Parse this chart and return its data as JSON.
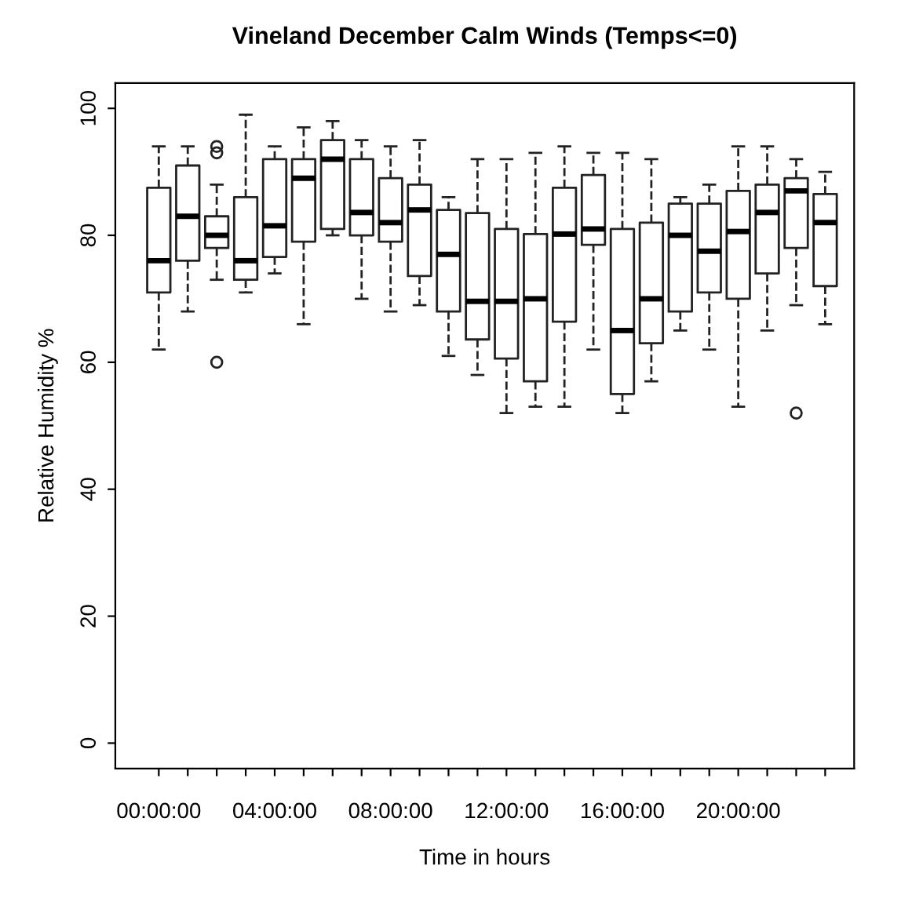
{
  "chart_data": {
    "type": "box",
    "title": "Vineland December Calm Winds (Temps<=0)",
    "xlabel": "Time in hours",
    "ylabel": "Relative Humidity %",
    "categories": [
      "00:00:00",
      null,
      null,
      null,
      "04:00:00",
      null,
      null,
      null,
      "08:00:00",
      null,
      null,
      null,
      "12:00:00",
      null,
      null,
      null,
      "16:00:00",
      null,
      null,
      null,
      "20:00:00",
      null,
      null,
      null
    ],
    "ylim": [
      -4,
      104
    ],
    "yticks": [
      0,
      20,
      40,
      60,
      80,
      100
    ],
    "grid": false,
    "boxes": [
      {
        "low": 62,
        "q1": 71,
        "median": 76,
        "q3": 87.5,
        "high": 94
      },
      {
        "low": 68,
        "q1": 76,
        "median": 83,
        "q3": 91,
        "high": 94
      },
      {
        "low": 73,
        "q1": 78,
        "median": 80,
        "q3": 83,
        "high": 88,
        "outliers": [
          94,
          93,
          60
        ]
      },
      {
        "low": 71,
        "q1": 73,
        "median": 76,
        "q3": 86,
        "high": 99
      },
      {
        "low": 74,
        "q1": 76.6,
        "median": 81.5,
        "q3": 92,
        "high": 94
      },
      {
        "low": 66,
        "q1": 79,
        "median": 89,
        "q3": 92,
        "high": 97
      },
      {
        "low": 80,
        "q1": 81,
        "median": 92,
        "q3": 95,
        "high": 98
      },
      {
        "low": 70,
        "q1": 80,
        "median": 83.6,
        "q3": 92,
        "high": 95
      },
      {
        "low": 68,
        "q1": 79,
        "median": 82,
        "q3": 89,
        "high": 94
      },
      {
        "low": 69,
        "q1": 73.6,
        "median": 84,
        "q3": 88,
        "high": 95
      },
      {
        "low": 61,
        "q1": 68,
        "median": 77,
        "q3": 84,
        "high": 86
      },
      {
        "low": 58,
        "q1": 63.6,
        "median": 69.6,
        "q3": 83.5,
        "high": 92
      },
      {
        "low": 52,
        "q1": 60.6,
        "median": 69.6,
        "q3": 81,
        "high": 92
      },
      {
        "low": 53,
        "q1": 57,
        "median": 70,
        "q3": 80.2,
        "high": 93
      },
      {
        "low": 53,
        "q1": 66.4,
        "median": 80.2,
        "q3": 87.5,
        "high": 94
      },
      {
        "low": 62,
        "q1": 78.5,
        "median": 81,
        "q3": 89.5,
        "high": 93
      },
      {
        "low": 52,
        "q1": 55,
        "median": 65,
        "q3": 81,
        "high": 93
      },
      {
        "low": 57,
        "q1": 63,
        "median": 70,
        "q3": 82,
        "high": 92
      },
      {
        "low": 65,
        "q1": 68,
        "median": 80,
        "q3": 85,
        "high": 86
      },
      {
        "low": 62,
        "q1": 71,
        "median": 77.5,
        "q3": 85,
        "high": 88
      },
      {
        "low": 53,
        "q1": 70,
        "median": 80.6,
        "q3": 87,
        "high": 94
      },
      {
        "low": 65,
        "q1": 74,
        "median": 83.6,
        "q3": 88,
        "high": 94
      },
      {
        "low": 69,
        "q1": 78,
        "median": 87,
        "q3": 89,
        "high": 92,
        "outliers": [
          52
        ]
      },
      {
        "low": 66,
        "q1": 72,
        "median": 82,
        "q3": 86.5,
        "high": 90
      }
    ]
  }
}
